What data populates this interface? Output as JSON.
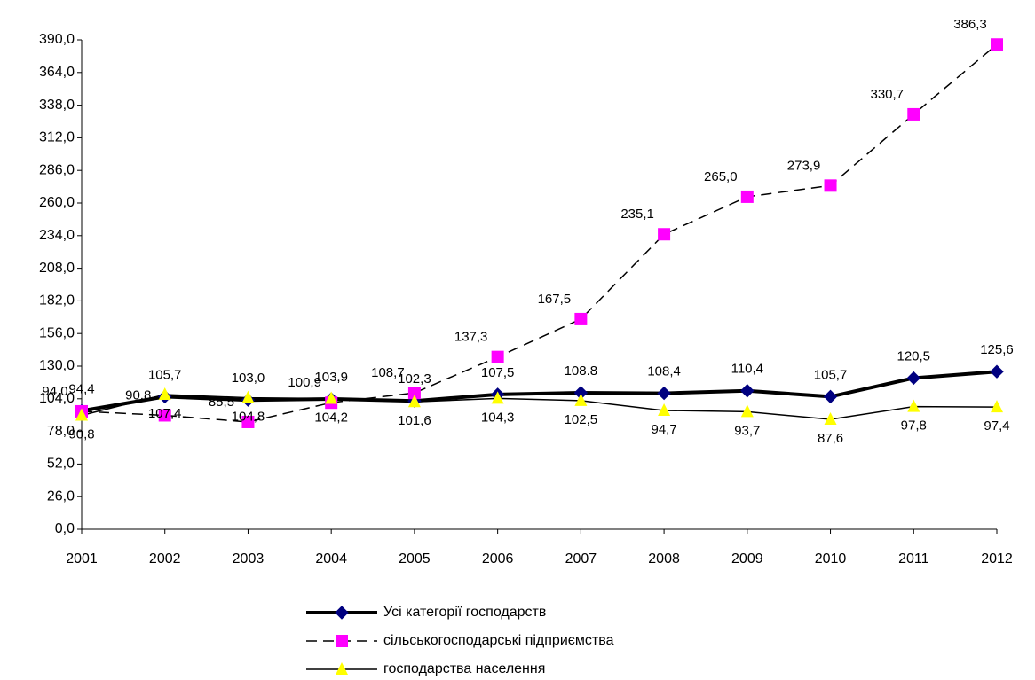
{
  "chart_data": {
    "type": "line",
    "categories": [
      "2001",
      "2002",
      "2003",
      "2004",
      "2005",
      "2006",
      "2007",
      "2008",
      "2009",
      "2010",
      "2011",
      "2012"
    ],
    "ylim": [
      0,
      390
    ],
    "yticks": [
      {
        "value": 0,
        "label": "0,0"
      },
      {
        "value": 26,
        "label": "26,0"
      },
      {
        "value": 52,
        "label": "52,0"
      },
      {
        "value": 78,
        "label": "78,0"
      },
      {
        "value": 104,
        "label": "104,0"
      },
      {
        "value": 130,
        "label": "130,0"
      },
      {
        "value": 156,
        "label": "156,0"
      },
      {
        "value": 182,
        "label": "182,0"
      },
      {
        "value": 208,
        "label": "208,0"
      },
      {
        "value": 234,
        "label": "234,0"
      },
      {
        "value": 260,
        "label": "260,0"
      },
      {
        "value": 286,
        "label": "286,0"
      },
      {
        "value": 312,
        "label": "312,0"
      },
      {
        "value": 338,
        "label": "338,0"
      },
      {
        "value": 364,
        "label": "364,0"
      },
      {
        "value": 390,
        "label": "390,0"
      }
    ],
    "legend": "bottom",
    "series": [
      {
        "name": "Усі категорії господарств",
        "color": "#000080",
        "line_color": "#000000",
        "marker": "diamond",
        "dash": "solid",
        "width": 4,
        "values": [
          94.4,
          105.7,
          103.0,
          103.9,
          102.3,
          107.5,
          108.8,
          108.4,
          110.4,
          105.7,
          120.5,
          125.6
        ],
        "value_labels": [
          "94,4",
          "105,7",
          "103,0",
          "103,9",
          "102,3",
          "107,5",
          "108.8",
          "108,4",
          "110,4",
          "105,7",
          "120,5",
          "125,6"
        ]
      },
      {
        "name": "сільськогосподарські підприємства",
        "color": "#ff00ff",
        "line_color": "#000000",
        "marker": "square",
        "dash": "dashed",
        "width": 1.5,
        "values": [
          94.0,
          90.8,
          85.5,
          100.9,
          108.7,
          137.3,
          167.5,
          235.1,
          265.0,
          273.9,
          330.7,
          386.3
        ],
        "value_labels": [
          "94,0",
          "90,8",
          "85,5",
          "100,9",
          "108,7",
          "137,3",
          "167,5",
          "235,1",
          "265,0",
          "273,9",
          "330,7",
          "386,3"
        ]
      },
      {
        "name": "господарства населення",
        "color": "#ffff00",
        "line_color": "#000000",
        "marker": "triangle",
        "dash": "solid",
        "width": 1.5,
        "values": [
          90.8,
          107.4,
          104.8,
          104.2,
          101.6,
          104.3,
          102.5,
          94.7,
          93.7,
          87.6,
          97.8,
          97.4
        ],
        "value_labels": [
          "90,8",
          "107,4",
          "104,8",
          "104,2",
          "101,6",
          "104,3",
          "102,5",
          "94,7",
          "93,7",
          "87,6",
          "97,8",
          "97,4"
        ]
      }
    ]
  }
}
